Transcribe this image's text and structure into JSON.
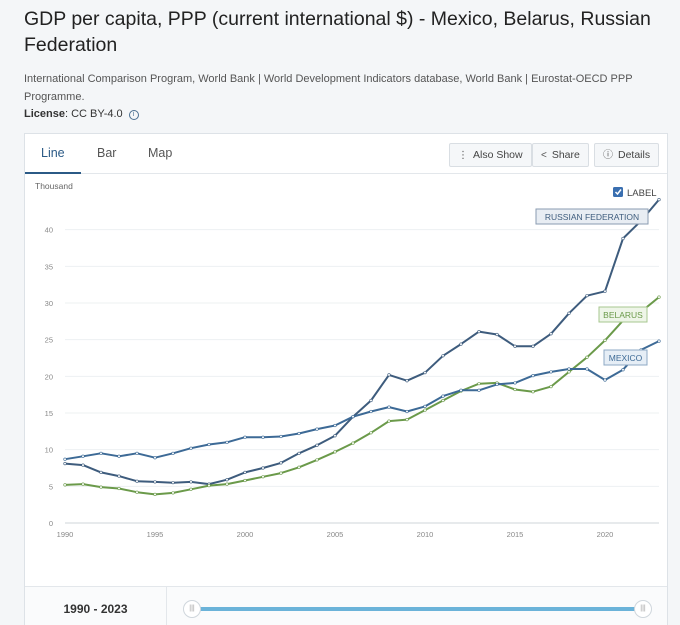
{
  "page": {
    "title": "GDP per capita, PPP (current international $) - Mexico, Belarus, Russian Federation",
    "source": "International Comparison Program, World Bank | World Development Indicators database, World Bank | Eurostat-OECD PPP Programme.",
    "license_label": "License",
    "license_value": ": CC BY-4.0"
  },
  "tabs": [
    {
      "label": "Line"
    },
    {
      "label": "Bar"
    },
    {
      "label": "Map"
    }
  ],
  "toolbar": {
    "also_show": "Also Show",
    "share": "Share",
    "details": "Details"
  },
  "label_toggle": {
    "text": "LABEL",
    "checked": true
  },
  "range": {
    "text": "1990 - 2023",
    "start": 1990,
    "end": 2023
  },
  "colors": {
    "russia": "#3e5c7d",
    "belarus": "#6b9a4a",
    "mexico": "#3d6a96",
    "accent": "#2b5a86",
    "slider": "#6bb3d9"
  },
  "chart_data": {
    "type": "line",
    "ylabel": "Thousand",
    "ylim": [
      0,
      45
    ],
    "yticks": [
      0,
      5,
      10,
      15,
      20,
      25,
      30,
      35,
      40
    ],
    "xlim": [
      1990,
      2023
    ],
    "xticks": [
      1990,
      1995,
      2000,
      2005,
      2010,
      2015,
      2020
    ],
    "grid": true,
    "x": [
      1990,
      1991,
      1992,
      1993,
      1994,
      1995,
      1996,
      1997,
      1998,
      1999,
      2000,
      2001,
      2002,
      2003,
      2004,
      2005,
      2006,
      2007,
      2008,
      2009,
      2010,
      2011,
      2012,
      2013,
      2014,
      2015,
      2016,
      2017,
      2018,
      2019,
      2020,
      2021,
      2022,
      2023
    ],
    "series": [
      {
        "name": "RUSSIAN FEDERATION",
        "color_key": "russia",
        "values": [
          8.1,
          7.9,
          6.9,
          6.4,
          5.7,
          5.6,
          5.5,
          5.6,
          5.3,
          5.9,
          6.9,
          7.5,
          8.2,
          9.5,
          10.6,
          11.9,
          14.5,
          16.7,
          20.2,
          19.4,
          20.5,
          22.8,
          24.4,
          26.1,
          25.7,
          24.1,
          24.1,
          25.8,
          28.6,
          31.0,
          31.6,
          38.8,
          41.2,
          44.1
        ]
      },
      {
        "name": "BELARUS",
        "color_key": "belarus",
        "values": [
          5.2,
          5.3,
          4.9,
          4.7,
          4.2,
          3.9,
          4.1,
          4.6,
          5.1,
          5.3,
          5.8,
          6.3,
          6.8,
          7.6,
          8.6,
          9.7,
          10.9,
          12.3,
          13.9,
          14.1,
          15.4,
          16.7,
          18.0,
          19.0,
          19.1,
          18.2,
          17.9,
          18.6,
          20.6,
          22.6,
          24.9,
          27.6,
          28.8,
          30.8
        ]
      },
      {
        "name": "MEXICO",
        "color_key": "mexico",
        "values": [
          8.7,
          9.1,
          9.5,
          9.1,
          9.5,
          8.9,
          9.5,
          10.2,
          10.7,
          11.0,
          11.7,
          11.7,
          11.8,
          12.2,
          12.8,
          13.3,
          14.5,
          15.2,
          15.8,
          15.2,
          15.9,
          17.3,
          18.1,
          18.1,
          18.9,
          19.1,
          20.1,
          20.6,
          21.0,
          21.0,
          19.5,
          20.9,
          23.6,
          24.8
        ]
      }
    ]
  }
}
